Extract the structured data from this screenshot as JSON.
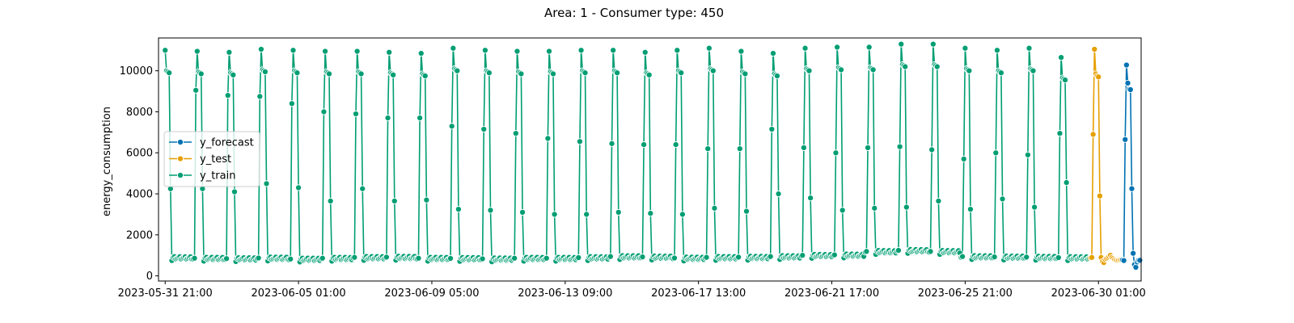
{
  "chart_data": {
    "type": "line",
    "title": "Area: 1 - Consumer type: 450",
    "xlabel": "",
    "ylabel": "energy_consumption",
    "xlim": [
      "2023-05-31 16:00",
      "2023-07-01 09:00"
    ],
    "ylim": [
      -250,
      11600
    ],
    "grid": false,
    "legend_position": "center-left",
    "x_ticks": [
      "2023-05-31 21:00",
      "2023-06-05 01:00",
      "2023-06-09 05:00",
      "2023-06-13 09:00",
      "2023-06-17 13:00",
      "2023-06-21 17:00",
      "2023-06-25 21:00",
      "2023-06-30 01:00"
    ],
    "y_ticks": [
      0,
      2000,
      4000,
      6000,
      8000,
      10000
    ],
    "y_tick_labels": [
      "0",
      "2000",
      "4000",
      "6000",
      "8000",
      "10000"
    ],
    "daily_pattern": {
      "sample_hours": [
        0,
        1,
        2,
        3,
        4,
        5,
        6,
        7,
        8,
        9,
        10,
        11,
        12,
        13,
        14,
        15,
        16,
        17,
        18,
        19,
        20,
        21,
        22,
        23
      ],
      "description_shape": "night peak ~22:00-00:00, near-constant daytime base"
    },
    "series": [
      {
        "name": "y_forecast",
        "color": "#0072b2",
        "x": [
          "2023-06-30 19:00",
          "2023-06-30 20:00",
          "2023-06-30 21:00",
          "2023-06-30 22:00",
          "2023-06-30 23:00",
          "2023-07-01 00:00",
          "2023-07-01 01:00",
          "2023-07-01 02:00",
          "2023-07-01 03:00",
          "2023-07-01 04:00",
          "2023-07-01 05:00",
          "2023-07-01 06:00",
          "2023-07-01 07:00",
          "2023-07-01 08:00"
        ],
        "y": [
          780,
          750,
          6650,
          10280,
          9400,
          9100,
          9080,
          4250,
          1100,
          550,
          420,
          680,
          760,
          760
        ]
      },
      {
        "name": "y_test",
        "color": "#e69f00",
        "x": [
          "2023-06-29 19:00",
          "2023-06-29 20:00",
          "2023-06-29 21:00",
          "2023-06-29 22:00",
          "2023-06-29 23:00",
          "2023-06-30 00:00",
          "2023-06-30 01:00",
          "2023-06-30 02:00",
          "2023-06-30 03:00",
          "2023-06-30 04:00",
          "2023-06-30 05:00",
          "2023-06-30 06:00",
          "2023-06-30 07:00",
          "2023-06-30 08:00",
          "2023-06-30 09:00",
          "2023-06-30 10:00",
          "2023-06-30 11:00",
          "2023-06-30 12:00",
          "2023-06-30 13:00",
          "2023-06-30 14:00",
          "2023-06-30 15:00",
          "2023-06-30 16:00",
          "2023-06-30 17:00",
          "2023-06-30 18:00"
        ],
        "y": [
          880,
          900,
          6900,
          11050,
          9850,
          9750,
          9700,
          3900,
          900,
          700,
          650,
          800,
          850,
          900,
          950,
          1000,
          900,
          850,
          800,
          780,
          760,
          770,
          780,
          780
        ]
      },
      {
        "name": "y_train",
        "color": "#009e73",
        "start": "2023-05-31 21:00",
        "end": "2023-06-29 18:00",
        "daily_peaks": [
          11000,
          10950,
          10900,
          11050,
          11000,
          10950,
          10950,
          10900,
          10850,
          11100,
          11000,
          10950,
          10950,
          11000,
          11000,
          10900,
          11000,
          11100,
          10950,
          10850,
          11100,
          11150,
          11150,
          11300,
          11300,
          11100,
          11000,
          11100,
          10650
        ],
        "daily_drop_value": [
          4250,
          4250,
          4100,
          4500,
          4300,
          3650,
          4250,
          3650,
          3700,
          3250,
          3200,
          3100,
          3000,
          3000,
          3100,
          3050,
          3000,
          3300,
          3150,
          4000,
          3800,
          3200,
          3300,
          3350,
          3650,
          3250,
          3750,
          3350,
          4550
        ],
        "daily_rise_value": [
          9050,
          9050,
          8800,
          8750,
          8400,
          8000,
          7900,
          7700,
          7700,
          7300,
          7150,
          6950,
          6700,
          6550,
          6450,
          6400,
          6400,
          6200,
          6200,
          7150,
          6250,
          6000,
          6250,
          6300,
          6150,
          5700,
          6000,
          5900,
          6950
        ],
        "daily_base_value": [
          850,
          820,
          800,
          830,
          780,
          820,
          860,
          870,
          820,
          810,
          790,
          820,
          820,
          850,
          900,
          880,
          830,
          860,
          870,
          900,
          960,
          980,
          1150,
          1200,
          1150,
          900,
          880,
          870,
          850
        ]
      }
    ]
  }
}
